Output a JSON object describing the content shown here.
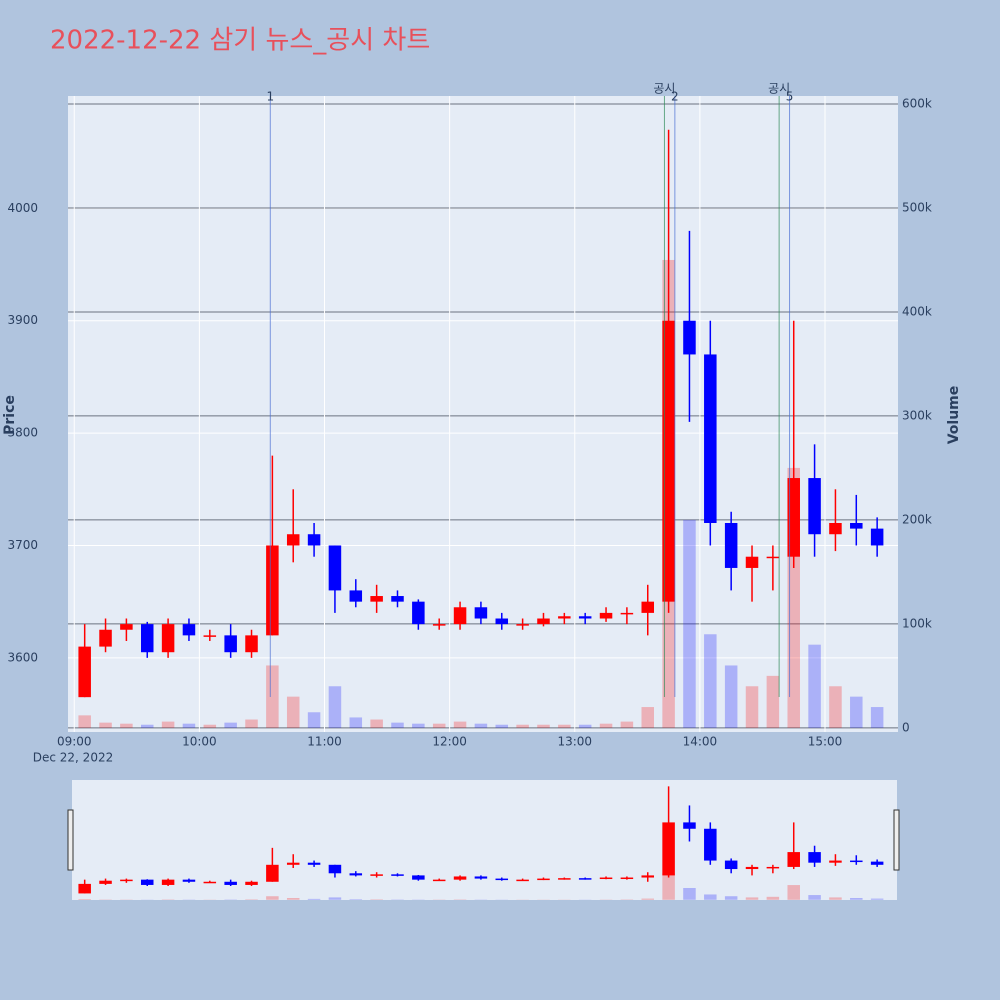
{
  "chart_data": {
    "type": "candlestick",
    "title": "2022-12-22 삼기 뉴스_공시 차트",
    "y_label": "Price",
    "y2_label": "Volume",
    "x_date_label": "Dec 22, 2022",
    "up_color": "#ff0000",
    "down_color": "#0000ff",
    "x": [
      "2022-12-22 09:00",
      "2022-12-22 09:10",
      "2022-12-22 09:20",
      "2022-12-22 09:30",
      "2022-12-22 09:40",
      "2022-12-22 09:50",
      "2022-12-22 10:00",
      "2022-12-22 10:10",
      "2022-12-22 10:20",
      "2022-12-22 10:30",
      "2022-12-22 10:40",
      "2022-12-22 10:50",
      "2022-12-22 11:00",
      "2022-12-22 11:10",
      "2022-12-22 11:20",
      "2022-12-22 11:30",
      "2022-12-22 11:40",
      "2022-12-22 11:50",
      "2022-12-22 12:00",
      "2022-12-22 12:10",
      "2022-12-22 12:20",
      "2022-12-22 12:30",
      "2022-12-22 12:40",
      "2022-12-22 12:50",
      "2022-12-22 13:00",
      "2022-12-22 13:10",
      "2022-12-22 13:20",
      "2022-12-22 13:30",
      "2022-12-22 13:40",
      "2022-12-22 13:50",
      "2022-12-22 14:00",
      "2022-12-22 14:10",
      "2022-12-22 14:20",
      "2022-12-22 14:30",
      "2022-12-22 14:40",
      "2022-12-22 14:50",
      "2022-12-22 15:00",
      "2022-12-22 15:10",
      "2022-12-22 15:20"
    ],
    "open": [
      3565,
      3610,
      3625,
      3630,
      3605,
      3630,
      3620,
      3620,
      3605,
      3620,
      3700,
      3710,
      3700,
      3660,
      3650,
      3655,
      3650,
      3630,
      3630,
      3645,
      3635,
      3630,
      3630,
      3635,
      3637,
      3635,
      3640,
      3640,
      3650,
      3900,
      3870,
      3720,
      3680,
      3690,
      3690,
      3760,
      3710,
      3720,
      3715
    ],
    "high": [
      3630,
      3635,
      3635,
      3632,
      3635,
      3635,
      3625,
      3630,
      3625,
      3780,
      3750,
      3720,
      3700,
      3670,
      3665,
      3660,
      3652,
      3635,
      3650,
      3650,
      3640,
      3635,
      3640,
      3640,
      3640,
      3645,
      3645,
      3665,
      4070,
      3980,
      3900,
      3730,
      3700,
      3700,
      3900,
      3790,
      3750,
      3745,
      3725
    ],
    "low": [
      3565,
      3605,
      3615,
      3600,
      3600,
      3615,
      3615,
      3600,
      3600,
      3620,
      3685,
      3690,
      3640,
      3645,
      3640,
      3645,
      3625,
      3625,
      3625,
      3630,
      3625,
      3625,
      3628,
      3630,
      3630,
      3632,
      3630,
      3620,
      3640,
      3810,
      3700,
      3660,
      3650,
      3660,
      3680,
      3690,
      3695,
      3700,
      3690
    ],
    "close": [
      3610,
      3625,
      3630,
      3605,
      3630,
      3620,
      3620,
      3605,
      3620,
      3700,
      3710,
      3700,
      3660,
      3650,
      3655,
      3650,
      3630,
      3630,
      3645,
      3635,
      3630,
      3630,
      3635,
      3637,
      3635,
      3640,
      3640,
      3650,
      3900,
      3870,
      3720,
      3680,
      3690,
      3690,
      3760,
      3710,
      3720,
      3715,
      3700
    ],
    "volume": [
      12000,
      5000,
      4000,
      3000,
      6000,
      4000,
      3000,
      5000,
      8000,
      60000,
      30000,
      15000,
      40000,
      10000,
      8000,
      5000,
      4000,
      4000,
      6000,
      4000,
      3000,
      3000,
      3000,
      3000,
      3000,
      4000,
      6000,
      20000,
      450000,
      200000,
      90000,
      60000,
      40000,
      50000,
      250000,
      80000,
      40000,
      30000,
      20000
    ],
    "xlim": [
      "2022-12-22 08:57",
      "2022-12-22 15:35"
    ],
    "xticks": [
      {
        "value": "2022-12-22 09:00",
        "label": "09:00"
      },
      {
        "value": "2022-12-22 10:00",
        "label": "10:00"
      },
      {
        "value": "2022-12-22 11:00",
        "label": "11:00"
      },
      {
        "value": "2022-12-22 12:00",
        "label": "12:00"
      },
      {
        "value": "2022-12-22 13:00",
        "label": "13:00"
      },
      {
        "value": "2022-12-22 14:00",
        "label": "14:00"
      },
      {
        "value": "2022-12-22 15:00",
        "label": "15:00"
      }
    ],
    "ylim": [
      3534,
      4100
    ],
    "yticks": [
      3600,
      3700,
      3800,
      3900,
      4000
    ],
    "y2lim": [
      -4000,
      607700
    ],
    "y2ticks": [
      0,
      {
        "value": 100000,
        "label": "100k"
      },
      {
        "value": 200000,
        "label": "200k"
      },
      {
        "value": 300000,
        "label": "300k"
      },
      {
        "value": 400000,
        "label": "400k"
      },
      {
        "value": 500000,
        "label": "500k"
      },
      {
        "value": 600000,
        "label": "600k"
      }
    ],
    "news": [
      {
        "x": "2022-12-22 10:34",
        "label": "1"
      },
      {
        "x": "2022-12-22 13:48",
        "label": "2"
      },
      {
        "x": "2022-12-22 14:43",
        "label": "5"
      }
    ],
    "disclosures": [
      {
        "x": "2022-12-22 13:43",
        "label": "공시"
      },
      {
        "x": "2022-12-22 14:38",
        "label": "공시"
      }
    ],
    "grid": true
  }
}
